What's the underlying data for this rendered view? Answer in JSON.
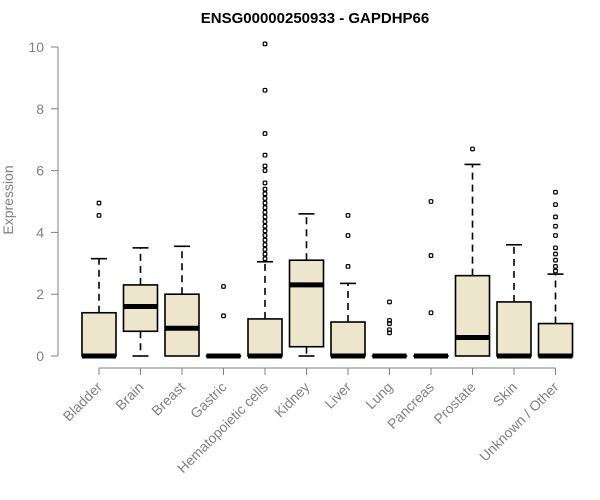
{
  "chart_data": {
    "type": "box",
    "title": "ENSG00000250933 - GAPDHP66",
    "xlabel": "",
    "ylabel": "Expression",
    "ylim": [
      0,
      10
    ],
    "yticks": [
      0,
      2,
      4,
      6,
      8,
      10
    ],
    "grid": false,
    "colors": {
      "box_fill": "#EDE6CC",
      "box_stroke": "#000000",
      "axis": "#808080"
    },
    "categories": [
      "Bladder",
      "Brain",
      "Breast",
      "Gastric",
      "Hematopoietic cells",
      "Kidney",
      "Liver",
      "Lung",
      "Pancreas",
      "Prostate",
      "Skin",
      "Unknown / Other"
    ],
    "boxes": [
      {
        "q1": 0,
        "median": 0,
        "q3": 1.4,
        "lower": 0,
        "upper": 3.15,
        "outliers": [
          4.55,
          4.95
        ]
      },
      {
        "q1": 0.8,
        "median": 1.6,
        "q3": 2.3,
        "lower": 0,
        "upper": 3.5,
        "outliers": []
      },
      {
        "q1": 0,
        "median": 0.9,
        "q3": 2.0,
        "lower": 0,
        "upper": 3.55,
        "outliers": []
      },
      {
        "q1": 0,
        "median": 0,
        "q3": 0,
        "lower": 0,
        "upper": 0,
        "outliers": [
          1.3,
          2.25
        ]
      },
      {
        "q1": 0,
        "median": 0,
        "q3": 1.2,
        "lower": 0,
        "upper": 3.05,
        "outliers": [
          3.15,
          3.3,
          3.45,
          3.6,
          3.75,
          3.9,
          4.05,
          4.2,
          4.35,
          4.5,
          4.65,
          4.8,
          4.95,
          5.1,
          5.25,
          5.4,
          5.6,
          6.0,
          6.15,
          6.5,
          7.2,
          8.6,
          10.1
        ]
      },
      {
        "q1": 0.3,
        "median": 2.3,
        "q3": 3.1,
        "lower": 0,
        "upper": 4.6,
        "outliers": []
      },
      {
        "q1": 0,
        "median": 0,
        "q3": 1.1,
        "lower": 0,
        "upper": 2.35,
        "outliers": [
          2.9,
          3.9,
          4.55
        ]
      },
      {
        "q1": 0,
        "median": 0,
        "q3": 0,
        "lower": 0,
        "upper": 0,
        "outliers": [
          0.75,
          0.85,
          1.05,
          1.15,
          1.75
        ]
      },
      {
        "q1": 0,
        "median": 0,
        "q3": 0,
        "lower": 0,
        "upper": 0,
        "outliers": [
          1.4,
          3.25,
          5.0
        ]
      },
      {
        "q1": 0,
        "median": 0.6,
        "q3": 2.6,
        "lower": 0,
        "upper": 6.2,
        "outliers": [
          6.7
        ]
      },
      {
        "q1": 0,
        "median": 0,
        "q3": 1.75,
        "lower": 0,
        "upper": 3.6,
        "outliers": []
      },
      {
        "q1": 0,
        "median": 0,
        "q3": 1.05,
        "lower": 0,
        "upper": 2.65,
        "outliers": [
          2.75,
          2.9,
          3.1,
          3.3,
          3.5,
          3.9,
          4.2,
          4.5,
          4.9,
          5.3
        ]
      }
    ]
  }
}
